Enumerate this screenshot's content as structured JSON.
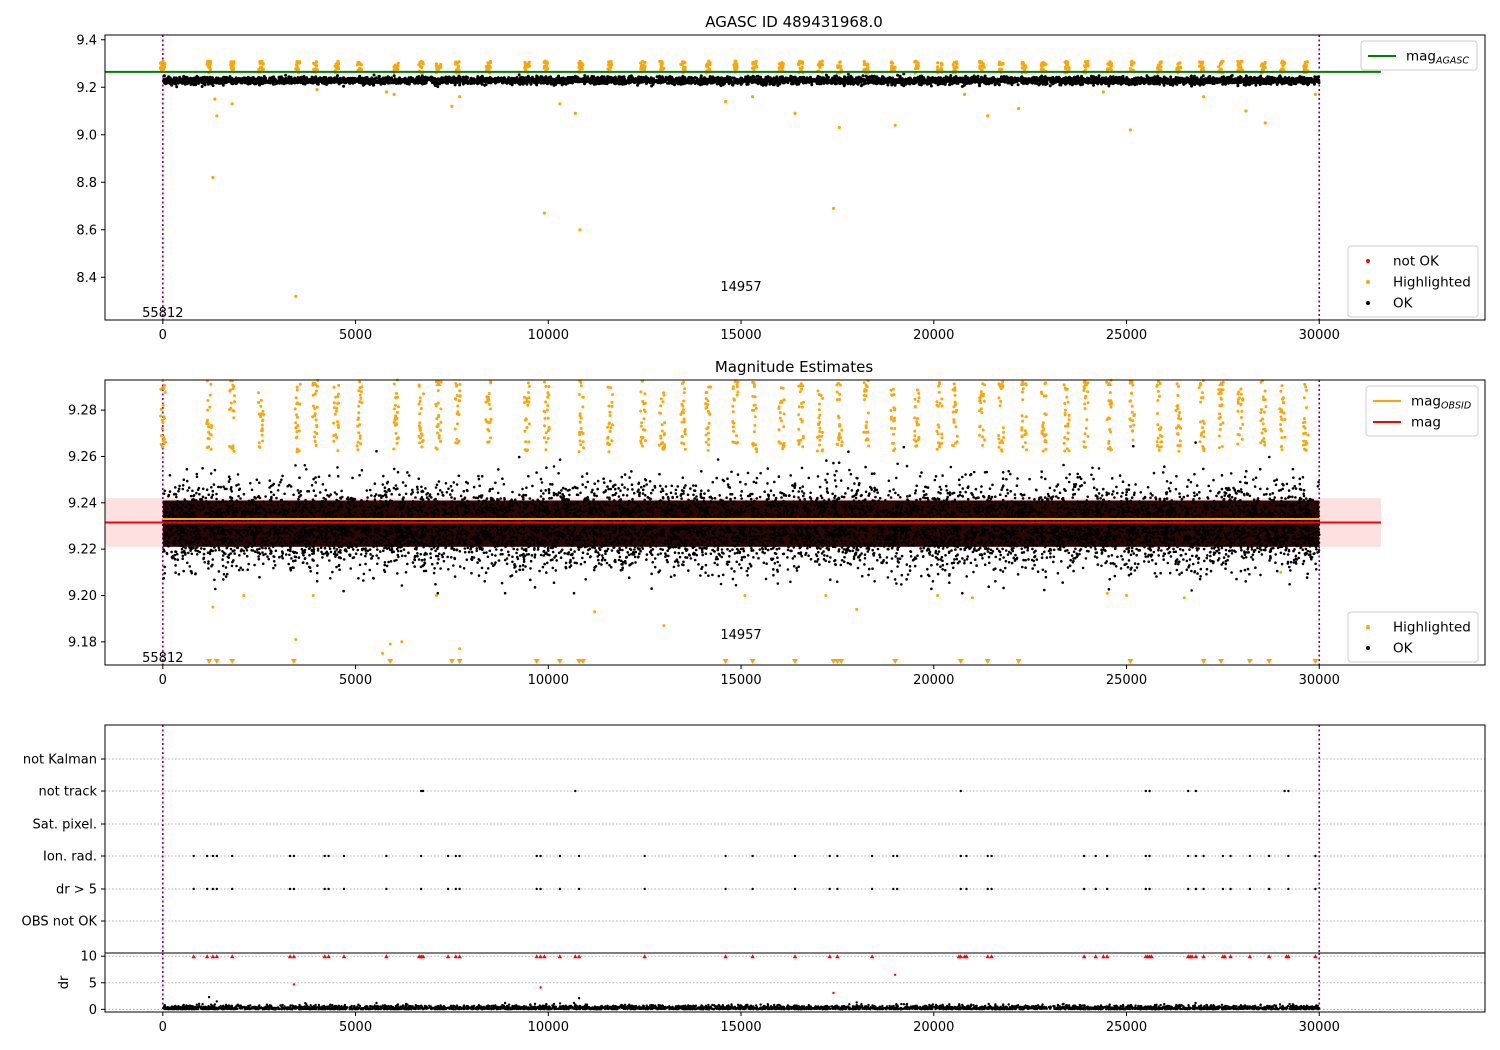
{
  "chart_data": [
    {
      "type": "scatter",
      "title": "AGASC ID 489431968.0",
      "xlim": [
        -1500,
        34300
      ],
      "ylim": [
        8.22,
        9.42
      ],
      "xticks": [
        "0",
        "5000",
        "10000",
        "15000",
        "20000",
        "25000",
        "30000"
      ],
      "yticks": [
        "8.4",
        "8.6",
        "8.8",
        "9.0",
        "9.2",
        "9.4"
      ],
      "obs_boundaries": [
        0,
        30000
      ],
      "obs_labels": [
        {
          "text": "55812",
          "x": 0,
          "y": 8.25
        },
        {
          "text": "14957",
          "x": 15000,
          "y": 8.36
        }
      ],
      "mag_agasc": 9.265,
      "ok_band": {
        "center": 9.228,
        "spread": 0.015
      },
      "highlighted_clusters": [
        0,
        1200,
        1800,
        2550,
        3500,
        3950,
        4500,
        5100,
        6050,
        6700,
        7150,
        7650,
        8450,
        9450,
        9950,
        10850,
        11600,
        12450,
        12950,
        13500,
        14150,
        14850,
        15350,
        16050,
        16550,
        17050,
        17550,
        18250,
        18950,
        19550,
        20150,
        20550,
        21250,
        21750,
        22350,
        22850,
        23450,
        23950,
        24550,
        25150,
        25850,
        26350,
        26950,
        27450,
        27950,
        28550,
        29050,
        29650
      ],
      "highlighted_outliers": [
        {
          "x": 1300,
          "y": 8.82
        },
        {
          "x": 1350,
          "y": 9.15
        },
        {
          "x": 1400,
          "y": 9.08
        },
        {
          "x": 1800,
          "y": 9.13
        },
        {
          "x": 3450,
          "y": 8.32
        },
        {
          "x": 4000,
          "y": 9.19
        },
        {
          "x": 5800,
          "y": 9.18
        },
        {
          "x": 6000,
          "y": 9.17
        },
        {
          "x": 7500,
          "y": 9.12
        },
        {
          "x": 7700,
          "y": 9.16
        },
        {
          "x": 9900,
          "y": 8.67
        },
        {
          "x": 10300,
          "y": 9.13
        },
        {
          "x": 10700,
          "y": 9.09
        },
        {
          "x": 10820,
          "y": 8.6
        },
        {
          "x": 14600,
          "y": 9.14
        },
        {
          "x": 15300,
          "y": 9.16
        },
        {
          "x": 16400,
          "y": 9.09
        },
        {
          "x": 17400,
          "y": 8.69
        },
        {
          "x": 17550,
          "y": 9.03
        },
        {
          "x": 19000,
          "y": 9.04
        },
        {
          "x": 20800,
          "y": 9.17
        },
        {
          "x": 21400,
          "y": 9.08
        },
        {
          "x": 22200,
          "y": 9.11
        },
        {
          "x": 24400,
          "y": 9.18
        },
        {
          "x": 25100,
          "y": 9.02
        },
        {
          "x": 27000,
          "y": 9.16
        },
        {
          "x": 28100,
          "y": 9.1
        },
        {
          "x": 28600,
          "y": 9.05
        },
        {
          "x": 29900,
          "y": 9.17
        }
      ],
      "legends": [
        {
          "location": "upper-right",
          "entries": [
            {
              "label": "mag",
              "sub": "AGASC",
              "color": "#008000",
              "marker": "line"
            }
          ]
        },
        {
          "location": "lower-right",
          "entries": [
            {
              "label": "not OK",
              "color": "#ff0000",
              "marker": "dot"
            },
            {
              "label": "Highlighted",
              "color": "#ffa500",
              "marker": "dot"
            },
            {
              "label": "OK",
              "color": "#000000",
              "marker": "dot"
            }
          ]
        }
      ]
    },
    {
      "type": "scatter",
      "title": "Magnitude Estimates",
      "xlim": [
        -1500,
        34300
      ],
      "ylim": [
        9.17,
        9.293
      ],
      "xticks": [
        "0",
        "5000",
        "10000",
        "15000",
        "20000",
        "25000",
        "30000"
      ],
      "yticks": [
        "9.18",
        "9.20",
        "9.22",
        "9.24",
        "9.26",
        "9.28"
      ],
      "obs_boundaries": [
        0,
        30000
      ],
      "obs_labels": [
        {
          "text": "55812",
          "x": 0,
          "y": 9.173
        },
        {
          "text": "14957",
          "x": 15000,
          "y": 9.183
        }
      ],
      "mag": 9.2315,
      "mag_band": [
        9.221,
        9.242
      ],
      "mag_obsid": 9.233,
      "ok_band": {
        "center": 9.23,
        "spread": 0.009
      },
      "highlighted_clusters": [
        0,
        1200,
        1800,
        2550,
        3500,
        3950,
        4500,
        5100,
        6050,
        6700,
        7150,
        7650,
        8450,
        9450,
        9950,
        10850,
        11600,
        12450,
        12950,
        13500,
        14150,
        14850,
        15350,
        16050,
        16550,
        17050,
        17550,
        18250,
        18950,
        19550,
        20150,
        20550,
        21250,
        21750,
        22350,
        22850,
        23450,
        23950,
        24550,
        25150,
        25850,
        26350,
        26950,
        27450,
        27950,
        28550,
        29050,
        29650
      ],
      "highlighted_low": [
        {
          "x": 1300,
          "y": 9.195
        },
        {
          "x": 2100,
          "y": 9.2
        },
        {
          "x": 3450,
          "y": 9.181
        },
        {
          "x": 3900,
          "y": 9.2
        },
        {
          "x": 5700,
          "y": 9.175
        },
        {
          "x": 5900,
          "y": 9.179
        },
        {
          "x": 6200,
          "y": 9.18
        },
        {
          "x": 7100,
          "y": 9.2
        },
        {
          "x": 7700,
          "y": 9.177
        },
        {
          "x": 11200,
          "y": 9.193
        },
        {
          "x": 13000,
          "y": 9.187
        },
        {
          "x": 15100,
          "y": 9.2
        },
        {
          "x": 17200,
          "y": 9.2
        },
        {
          "x": 18000,
          "y": 9.194
        },
        {
          "x": 20100,
          "y": 9.2
        },
        {
          "x": 21000,
          "y": 9.199
        },
        {
          "x": 24500,
          "y": 9.201
        },
        {
          "x": 25000,
          "y": 9.2
        },
        {
          "x": 26500,
          "y": 9.199
        },
        {
          "x": 29000,
          "y": 9.21
        }
      ],
      "clip_marks_top": [
        3950,
        7150,
        24550,
        27450
      ],
      "clip_marks_bottom": [
        1200,
        1400,
        1800,
        3400,
        5900,
        7500,
        7700,
        9700,
        10300,
        10800,
        10900,
        14600,
        15300,
        16400,
        17400,
        17500,
        17600,
        19000,
        20700,
        21400,
        22200,
        25100,
        27000,
        27450,
        28200,
        28700,
        29900
      ],
      "legends": [
        {
          "location": "upper-right",
          "entries": [
            {
              "label": "mag",
              "sub": "OBSID",
              "color": "#ffa500",
              "marker": "line"
            },
            {
              "label": "mag",
              "sub": "",
              "color": "#ff0000",
              "marker": "line"
            }
          ]
        },
        {
          "location": "lower-right",
          "entries": [
            {
              "label": "Highlighted",
              "color": "#ffa500",
              "marker": "dot"
            },
            {
              "label": "OK",
              "color": "#000000",
              "marker": "dot"
            }
          ]
        }
      ]
    },
    {
      "type": "scatter",
      "title": "",
      "xlim": [
        -1500,
        34300
      ],
      "xticks": [
        "0",
        "5000",
        "10000",
        "15000",
        "20000",
        "25000",
        "30000"
      ],
      "flag_categories": [
        "not Kalman",
        "not track",
        "Sat. pixel.",
        "Ion. rad.",
        "dr > 5",
        "OBS not OK"
      ],
      "obs_boundaries": [
        0,
        30000
      ],
      "flags": {
        "not Kalman": [],
        "not track": [
          6700,
          6750,
          10700,
          20700,
          25500,
          25600,
          26600,
          26800,
          29100,
          29200
        ],
        "Sat. pixel.": [],
        "Ion. rad.": [
          800,
          1150,
          1300,
          1400,
          1800,
          3300,
          3400,
          4200,
          4300,
          4700,
          5800,
          6700,
          7400,
          7600,
          7700,
          9700,
          9800,
          10300,
          10800,
          12500,
          14600,
          15300,
          16400,
          17300,
          17500,
          18400,
          18950,
          19050,
          20700,
          20850,
          21400,
          21500,
          23900,
          24200,
          24500,
          25500,
          25600,
          26600,
          26800,
          27000,
          27500,
          27700,
          28200,
          28700,
          29200,
          29900
        ],
        "dr > 5": [
          800,
          1150,
          1300,
          1400,
          1800,
          3300,
          3400,
          4200,
          4300,
          4700,
          5800,
          6700,
          7400,
          7600,
          7700,
          9700,
          9800,
          10300,
          10800,
          12500,
          14600,
          15300,
          16400,
          17300,
          17500,
          18400,
          18950,
          19050,
          20700,
          20850,
          21400,
          21500,
          23900,
          24200,
          24500,
          25500,
          25600,
          26600,
          26800,
          27000,
          27500,
          27700,
          28200,
          28700,
          29200,
          29900
        ],
        "OBS not OK": []
      }
    },
    {
      "type": "scatter",
      "title": "",
      "xlabel": "",
      "ylabel": "dr",
      "xlim": [
        -1500,
        34300
      ],
      "ylim": [
        -0.5,
        10.6
      ],
      "xticks": [
        "0",
        "5000",
        "10000",
        "15000",
        "20000",
        "25000",
        "30000"
      ],
      "yticks": [
        "0",
        "5",
        "10"
      ],
      "obs_boundaries": [
        0,
        30000
      ],
      "clipped_at_10": [
        800,
        1150,
        1300,
        1400,
        1800,
        3300,
        3400,
        4200,
        4300,
        4700,
        5800,
        6650,
        6700,
        6750,
        7400,
        7600,
        7700,
        9700,
        9800,
        9900,
        10300,
        10700,
        10800,
        12500,
        14600,
        15300,
        16400,
        17300,
        17500,
        18400,
        20650,
        20700,
        20800,
        20850,
        21400,
        21500,
        23900,
        24200,
        24400,
        24500,
        25500,
        25550,
        25600,
        25650,
        26600,
        26650,
        26700,
        26800,
        27000,
        27500,
        27550,
        27700,
        28200,
        28700,
        29150,
        29200,
        29900
      ],
      "red_mid": [
        {
          "x": 3400,
          "y": 4.7
        },
        {
          "x": 9800,
          "y": 4.1
        },
        {
          "x": 17400,
          "y": 3.1
        },
        {
          "x": 19000,
          "y": 6.5
        }
      ],
      "black_outliers": [
        {
          "x": 1200,
          "y": 2.3
        },
        {
          "x": 1400,
          "y": 1.5
        },
        {
          "x": 10800,
          "y": 2.1
        },
        {
          "x": 18000,
          "y": 1.3
        }
      ]
    }
  ]
}
